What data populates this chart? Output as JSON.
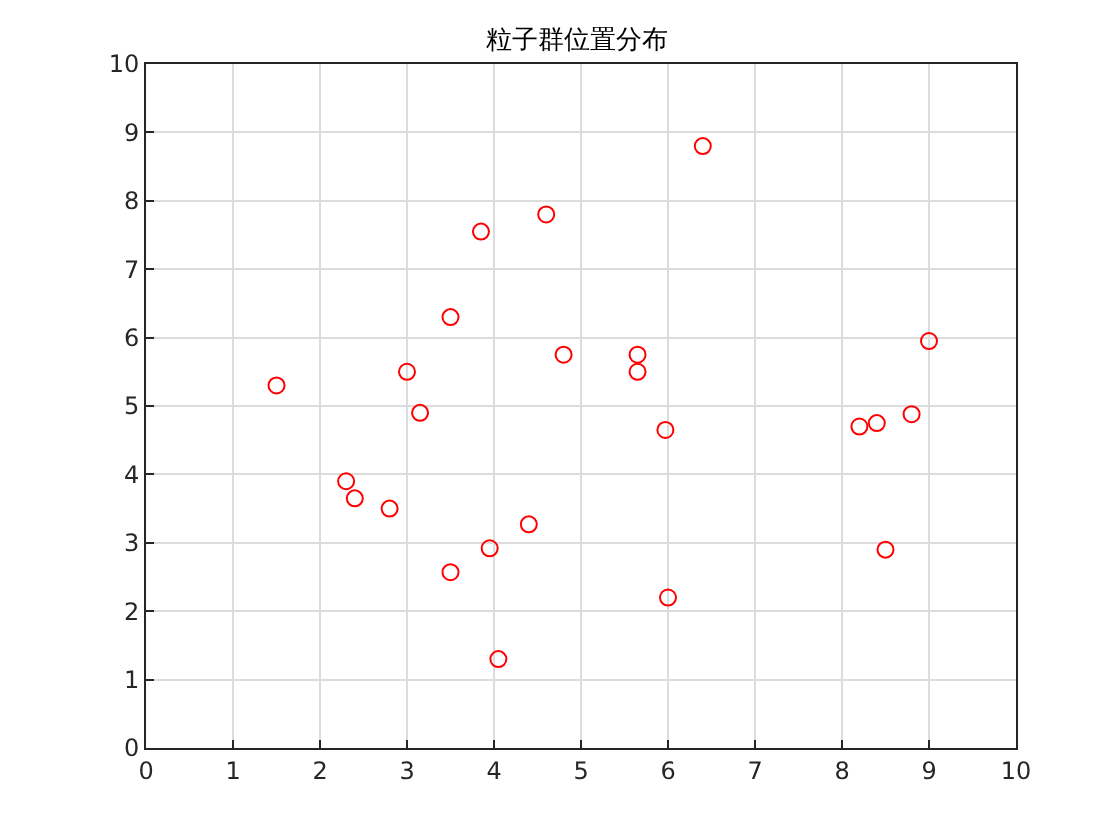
{
  "chart_data": {
    "type": "scatter",
    "title": "粒子群位置分布",
    "x": [
      1.5,
      2.3,
      2.4,
      2.8,
      3.0,
      3.15,
      3.5,
      3.5,
      3.85,
      3.95,
      4.05,
      4.4,
      4.6,
      4.8,
      5.65,
      5.65,
      5.97,
      6.0,
      6.4,
      8.2,
      8.4,
      8.5,
      8.8,
      9.0
    ],
    "series": [
      {
        "color": "#ff0000",
        "values": [
          5.3,
          3.9,
          3.65,
          3.5,
          5.5,
          4.9,
          6.3,
          2.57,
          7.55,
          2.92,
          1.3,
          3.27,
          7.8,
          5.75,
          5.75,
          5.5,
          4.65,
          2.2,
          8.8,
          4.7,
          4.75,
          2.9,
          4.88,
          5.95
        ]
      }
    ],
    "xlim": [
      0,
      10
    ],
    "xticks": [
      0,
      1,
      2,
      3,
      4,
      5,
      6,
      7,
      8,
      9,
      10
    ],
    "ylim": [
      0,
      10
    ],
    "yticks": [
      0,
      1,
      2,
      3,
      4,
      5,
      6,
      7,
      8,
      9,
      10
    ],
    "grid": true,
    "marker": "circle"
  }
}
